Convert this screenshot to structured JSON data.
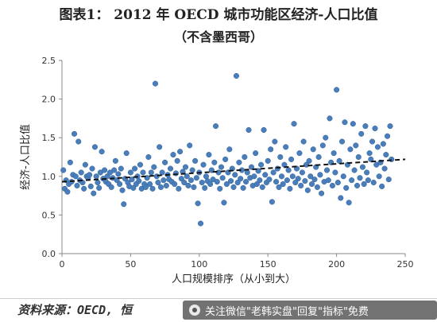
{
  "chart_data": {
    "type": "scatter",
    "title": "图表1：   2012 年 OECD 城市功能区经济-人口比值",
    "subtitle": "（不含墨西哥）",
    "xlabel": "人口规模排序（从小到大）",
    "ylabel": "经济-人口比值",
    "xlim": [
      0,
      250
    ],
    "ylim": [
      0,
      2.5
    ],
    "xticks": [
      "0",
      "50",
      "100",
      "150",
      "200",
      "250"
    ],
    "yticks": [
      "0.0",
      "0.5",
      "1.0",
      "1.5",
      "2.0",
      "2.5"
    ],
    "grid": false,
    "legend": "none",
    "marker_color": "#4a7ebb",
    "trend_color": "#111111",
    "trendline": {
      "x": [
        0,
        250
      ],
      "y": [
        0.93,
        1.22
      ]
    },
    "points": [
      [
        1,
        1.08
      ],
      [
        2,
        0.84
      ],
      [
        3,
        0.95
      ],
      [
        4,
        0.8
      ],
      [
        5,
        0.9
      ],
      [
        6,
        1.18
      ],
      [
        7,
        0.93
      ],
      [
        8,
        1.02
      ],
      [
        9,
        1.55
      ],
      [
        10,
        1.0
      ],
      [
        11,
        0.88
      ],
      [
        12,
        1.45
      ],
      [
        13,
        0.95
      ],
      [
        14,
        1.05
      ],
      [
        15,
        0.92
      ],
      [
        16,
        0.84
      ],
      [
        17,
        1.15
      ],
      [
        18,
        1.0
      ],
      [
        19,
        0.98
      ],
      [
        20,
        1.02
      ],
      [
        21,
        0.87
      ],
      [
        22,
        1.1
      ],
      [
        23,
        0.78
      ],
      [
        24,
        1.38
      ],
      [
        25,
        1.0
      ],
      [
        26,
        0.92
      ],
      [
        27,
        0.85
      ],
      [
        28,
        1.05
      ],
      [
        29,
        1.32
      ],
      [
        30,
        0.97
      ],
      [
        31,
        1.08
      ],
      [
        32,
        0.93
      ],
      [
        33,
        1.0
      ],
      [
        34,
        0.9
      ],
      [
        35,
        1.05
      ],
      [
        36,
        0.86
      ],
      [
        37,
        0.98
      ],
      [
        38,
        1.08
      ],
      [
        39,
        1.2
      ],
      [
        40,
        0.95
      ],
      [
        41,
        1.03
      ],
      [
        42,
        0.9
      ],
      [
        43,
        1.1
      ],
      [
        44,
        0.82
      ],
      [
        45,
        0.64
      ],
      [
        46,
        0.97
      ],
      [
        47,
        1.3
      ],
      [
        48,
        0.92
      ],
      [
        49,
        0.87
      ],
      [
        50,
        1.05
      ],
      [
        51,
        0.96
      ],
      [
        52,
        0.85
      ],
      [
        53,
        1.1
      ],
      [
        54,
        0.9
      ],
      [
        55,
        1.0
      ],
      [
        56,
        0.94
      ],
      [
        57,
        1.15
      ],
      [
        58,
        0.84
      ],
      [
        59,
        1.05
      ],
      [
        60,
        0.9
      ],
      [
        61,
        0.86
      ],
      [
        62,
        0.98
      ],
      [
        63,
        1.25
      ],
      [
        64,
        0.9
      ],
      [
        65,
        1.05
      ],
      [
        66,
        0.84
      ],
      [
        67,
        1.12
      ],
      [
        68,
        2.2
      ],
      [
        69,
        1.0
      ],
      [
        70,
        0.92
      ],
      [
        71,
        1.38
      ],
      [
        72,
        0.86
      ],
      [
        73,
        1.05
      ],
      [
        74,
        0.95
      ],
      [
        75,
        1.18
      ],
      [
        76,
        0.88
      ],
      [
        77,
        1.02
      ],
      [
        78,
        0.96
      ],
      [
        79,
        1.1
      ],
      [
        80,
        0.93
      ],
      [
        81,
        1.28
      ],
      [
        82,
        0.9
      ],
      [
        83,
        1.04
      ],
      [
        84,
        1.2
      ],
      [
        85,
        0.84
      ],
      [
        86,
        1.32
      ],
      [
        87,
        0.97
      ],
      [
        88,
        1.06
      ],
      [
        89,
        0.92
      ],
      [
        90,
        1.12
      ],
      [
        91,
        1.0
      ],
      [
        92,
        0.88
      ],
      [
        93,
        1.4
      ],
      [
        94,
        0.95
      ],
      [
        95,
        1.08
      ],
      [
        96,
        0.86
      ],
      [
        97,
        1.2
      ],
      [
        98,
        0.98
      ],
      [
        99,
        0.65
      ],
      [
        100,
        1.05
      ],
      [
        101,
        0.39
      ],
      [
        102,
        0.92
      ],
      [
        103,
        1.15
      ],
      [
        104,
        0.85
      ],
      [
        105,
        1.0
      ],
      [
        106,
        0.94
      ],
      [
        107,
        1.28
      ],
      [
        108,
        0.9
      ],
      [
        109,
        1.08
      ],
      [
        110,
        0.96
      ],
      [
        111,
        1.18
      ],
      [
        112,
        1.65
      ],
      [
        113,
        0.93
      ],
      [
        114,
        1.05
      ],
      [
        115,
        0.84
      ],
      [
        116,
        1.12
      ],
      [
        117,
        0.98
      ],
      [
        118,
        0.66
      ],
      [
        119,
        1.22
      ],
      [
        120,
        0.9
      ],
      [
        121,
        1.05
      ],
      [
        122,
        1.35
      ],
      [
        123,
        0.94
      ],
      [
        124,
        1.1
      ],
      [
        125,
        0.86
      ],
      [
        126,
        1.02
      ],
      [
        127,
        2.3
      ],
      [
        128,
        0.92
      ],
      [
        129,
        1.18
      ],
      [
        130,
        0.97
      ],
      [
        131,
        1.08
      ],
      [
        132,
        0.85
      ],
      [
        133,
        1.25
      ],
      [
        134,
        0.93
      ],
      [
        135,
        1.05
      ],
      [
        136,
        1.6
      ],
      [
        137,
        0.98
      ],
      [
        138,
        1.12
      ],
      [
        139,
        0.88
      ],
      [
        140,
        1.0
      ],
      [
        141,
        1.3
      ],
      [
        142,
        0.9
      ],
      [
        143,
        1.07
      ],
      [
        144,
        0.95
      ],
      [
        145,
        1.15
      ],
      [
        146,
        0.86
      ],
      [
        147,
        1.6
      ],
      [
        148,
        1.02
      ],
      [
        149,
        0.92
      ],
      [
        150,
        1.2
      ],
      [
        151,
        0.96
      ],
      [
        152,
        1.35
      ],
      [
        153,
        0.67
      ],
      [
        154,
        1.05
      ],
      [
        155,
        1.45
      ],
      [
        156,
        0.93
      ],
      [
        157,
        1.1
      ],
      [
        158,
        0.86
      ],
      [
        159,
        1.25
      ],
      [
        160,
        1.0
      ],
      [
        161,
        0.9
      ],
      [
        162,
        1.15
      ],
      [
        163,
        1.38
      ],
      [
        164,
        0.95
      ],
      [
        165,
        1.08
      ],
      [
        166,
        0.84
      ],
      [
        167,
        1.22
      ],
      [
        168,
        1.0
      ],
      [
        169,
        1.68
      ],
      [
        170,
        0.92
      ],
      [
        171,
        1.1
      ],
      [
        172,
        0.97
      ],
      [
        173,
        1.3
      ],
      [
        174,
        0.88
      ],
      [
        175,
        1.05
      ],
      [
        176,
        1.45
      ],
      [
        177,
        0.94
      ],
      [
        178,
        1.15
      ],
      [
        179,
        0.82
      ],
      [
        180,
        1.2
      ],
      [
        181,
        1.0
      ],
      [
        182,
        0.9
      ],
      [
        183,
        1.35
      ],
      [
        184,
        0.96
      ],
      [
        185,
        1.12
      ],
      [
        186,
        0.86
      ],
      [
        187,
        1.25
      ],
      [
        188,
        1.02
      ],
      [
        189,
        0.78
      ],
      [
        190,
        1.4
      ],
      [
        191,
        0.93
      ],
      [
        192,
        1.5
      ],
      [
        193,
        1.08
      ],
      [
        194,
        0.95
      ],
      [
        195,
        1.75
      ],
      [
        196,
        1.18
      ],
      [
        197,
        0.88
      ],
      [
        198,
        1.3
      ],
      [
        199,
        1.05
      ],
      [
        200,
        2.12
      ],
      [
        201,
        0.92
      ],
      [
        202,
        1.2
      ],
      [
        203,
        0.72
      ],
      [
        204,
        1.45
      ],
      [
        205,
        1.0
      ],
      [
        206,
        1.7
      ],
      [
        207,
        0.85
      ],
      [
        208,
        1.15
      ],
      [
        209,
        0.66
      ],
      [
        210,
        1.35
      ],
      [
        211,
        0.95
      ],
      [
        212,
        1.68
      ],
      [
        213,
        1.08
      ],
      [
        214,
        1.4
      ],
      [
        215,
        0.88
      ],
      [
        216,
        1.25
      ],
      [
        217,
        0.98
      ],
      [
        218,
        1.55
      ],
      [
        219,
        1.12
      ],
      [
        220,
        0.9
      ],
      [
        221,
        1.65
      ],
      [
        222,
        1.05
      ],
      [
        223,
        0.95
      ],
      [
        224,
        1.3
      ],
      [
        225,
        1.22
      ],
      [
        226,
        1.45
      ],
      [
        227,
        0.92
      ],
      [
        228,
        1.62
      ],
      [
        229,
        1.15
      ],
      [
        230,
        1.38
      ],
      [
        231,
        1.0
      ],
      [
        232,
        1.18
      ],
      [
        233,
        0.87
      ],
      [
        234,
        1.42
      ],
      [
        235,
        1.1
      ],
      [
        236,
        1.28
      ],
      [
        237,
        1.52
      ],
      [
        238,
        0.96
      ],
      [
        239,
        1.65
      ],
      [
        240,
        1.22
      ]
    ]
  },
  "footer": {
    "source": "资料来源：OECD, 恒",
    "watermark": "关注微信\"老韩实盘\"回复\"指标\"免费"
  }
}
